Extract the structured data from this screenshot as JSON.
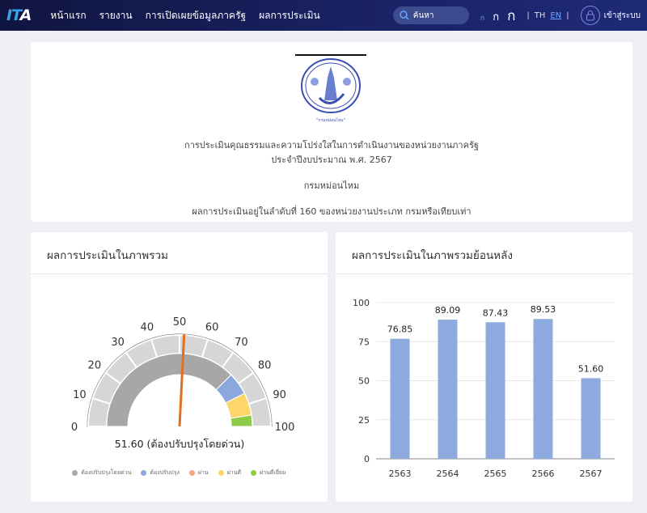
{
  "nav": {
    "logo": "ITA",
    "menu": [
      "หน้าแรก",
      "รายงาน",
      "การเปิดเผยข้อมูลภาครัฐ",
      "ผลการประเมิน"
    ],
    "search_placeholder": "ค้นหา",
    "font_sizes": [
      "ก",
      "ก",
      "ก"
    ],
    "langs": [
      "TH",
      "EN"
    ],
    "active_lang": "EN",
    "login": "เข้าสู่ระบบ"
  },
  "summary": {
    "title": "การประเมินคุณธรรมและความโปร่งใสในการดำเนินงานของหน่วยงานภาครัฐ",
    "year": "ประจำปีงบประมาณ พ.ศ. 2567",
    "agency": "กรมหม่อนไหม",
    "rank": "ผลการประเมินอยู่ในลำดับที่ 160 ของหน่วยงานประเภท กรมหรือเทียบเท่า",
    "seal_text": "กรมหม่อนไหม"
  },
  "gauge": {
    "title": "ผลการประเมินในภาพรวม",
    "value": 51.6,
    "label": "51.60 (ต้องปรับปรุงโดยด่วน)",
    "ticks": [
      "0",
      "10",
      "20",
      "30",
      "40",
      "50",
      "60",
      "70",
      "80",
      "90",
      "100"
    ],
    "bands": [
      {
        "from": 0,
        "to": 75,
        "color": "#a8a6a7"
      },
      {
        "from": 75,
        "to": 85,
        "color": "#8ba8de"
      },
      {
        "from": 85,
        "to": 95,
        "color": "#fdd66a"
      },
      {
        "from": 95,
        "to": 100,
        "color": "#8fcb4a"
      }
    ],
    "needle_color": "#e07020",
    "legend": [
      {
        "label": "ต้องปรับปรุงโดยด่วน",
        "color": "#a8a6a7"
      },
      {
        "label": "ต้องปรับปรุง",
        "color": "#8ba8de"
      },
      {
        "label": "ผ่าน",
        "color": "#f2a882"
      },
      {
        "label": "ผ่านดี",
        "color": "#fdd66a"
      },
      {
        "label": "ผ่านดีเยี่ยม",
        "color": "#8fcb4a"
      }
    ]
  },
  "chart_data": {
    "type": "bar",
    "title": "ผลการประเมินในภาพรวมย้อนหลัง",
    "categories": [
      "2563",
      "2564",
      "2565",
      "2566",
      "2567"
    ],
    "values": [
      76.85,
      89.09,
      87.43,
      89.53,
      51.6
    ],
    "value_labels": [
      "76.85",
      "89.09",
      "87.43",
      "89.53",
      "51.60"
    ],
    "yticks": [
      "0",
      "25",
      "50",
      "75",
      "100"
    ],
    "ylim": [
      0,
      100
    ],
    "grid": true,
    "color": "#8eaadf"
  }
}
